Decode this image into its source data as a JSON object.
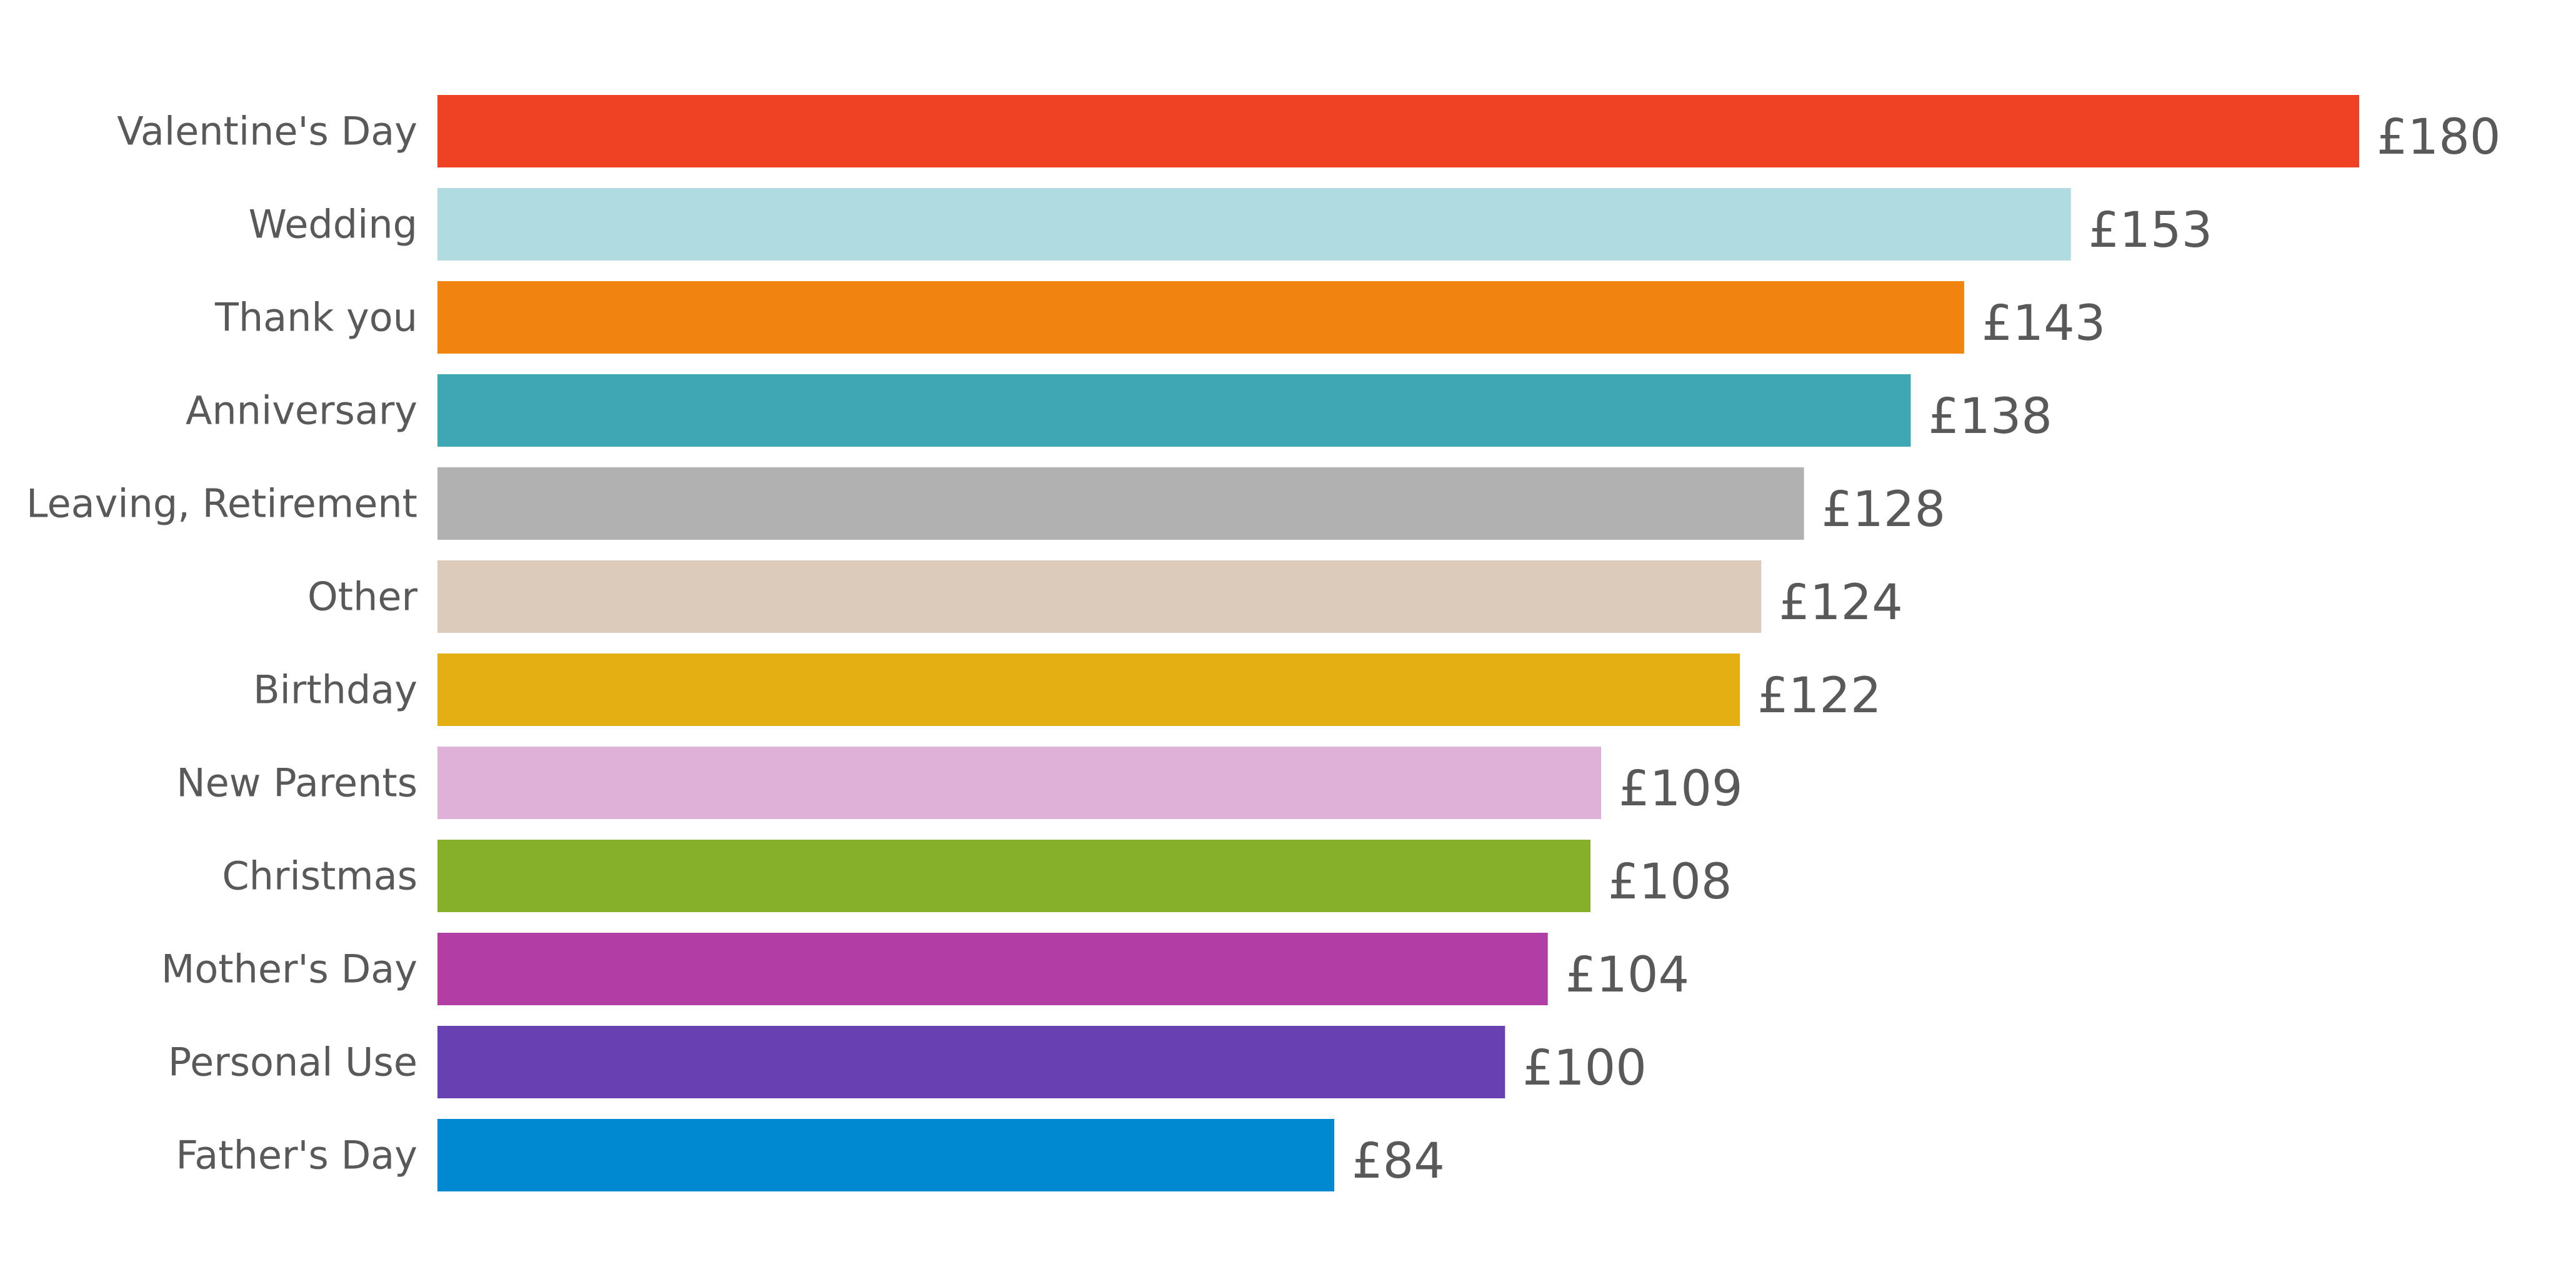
{
  "chart_data": {
    "type": "bar",
    "orientation": "horizontal",
    "categories": [
      "Valentine's Day",
      "Wedding",
      "Thank you",
      "Anniversary",
      "Leaving, Retirement",
      "Other",
      "Birthday",
      "New Parents",
      "Christmas",
      "Mother's Day",
      "Personal Use",
      "Father's Day"
    ],
    "values": [
      180,
      153,
      143,
      138,
      128,
      124,
      122,
      109,
      108,
      104,
      100,
      84
    ],
    "value_labels": [
      "£180",
      "£153",
      "£143",
      "£138",
      "£128",
      "£124",
      "£122",
      "£109",
      "£108",
      "£104",
      "£100",
      "£84"
    ],
    "colors": [
      "#ef4123",
      "#b0dbe0",
      "#f0840e",
      "#3fa6b4",
      "#b1b1b1",
      "#dccabb",
      "#e4af12",
      "#dfb1d9",
      "#87b02a",
      "#b13ea5",
      "#6840b1",
      "#0089d1"
    ],
    "xlim": [
      0,
      180
    ],
    "grid": false,
    "legend": "none",
    "title": "",
    "xlabel": "",
    "ylabel": ""
  }
}
